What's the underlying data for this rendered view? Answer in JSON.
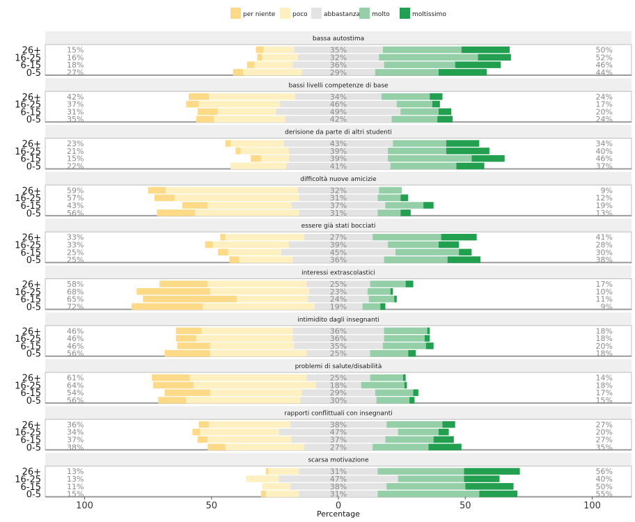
{
  "chart_data": {
    "type": "bar",
    "subtype": "diverging-stacked-likert",
    "xlabel": "Percentage",
    "x_ticks": [
      -100,
      -50,
      0,
      50,
      100
    ],
    "x_tick_labels": [
      "100",
      "50",
      "0",
      "50",
      "100"
    ],
    "xlim": [
      -100,
      100
    ],
    "legend": {
      "placement": "top",
      "items": [
        {
          "name": "per niente",
          "color": "#FDDA87"
        },
        {
          "name": "poco",
          "color": "#FFF0C1"
        },
        {
          "name": "abbastanza",
          "color": "#E3E3E3"
        },
        {
          "name": "molto",
          "color": "#94CFA8"
        },
        {
          "name": "moltissimo",
          "color": "#22A050"
        }
      ]
    },
    "groups": [
      "26+",
      "16-25",
      "6-15",
      "0-5"
    ],
    "panels": [
      {
        "title": "bassa autostima",
        "rows": [
          {
            "group": "26+",
            "left": "15%",
            "mid": "35%",
            "right": "50%",
            "values": [
              3,
              12,
              35,
              31,
              19
            ]
          },
          {
            "group": "16-25",
            "left": "16%",
            "mid": "32%",
            "right": "52%",
            "values": [
              2,
              14,
              32,
              39,
              13
            ]
          },
          {
            "group": "6-15",
            "left": "18%",
            "mid": "36%",
            "right": "46%",
            "values": [
              3,
              15,
              36,
              28,
              18
            ]
          },
          {
            "group": "0-5",
            "left": "27%",
            "mid": "29%",
            "right": "44%",
            "values": [
              4,
              23,
              29,
              25,
              19
            ]
          }
        ]
      },
      {
        "title": "bassi livelli competenze di base",
        "rows": [
          {
            "group": "26+",
            "left": "42%",
            "mid": "34%",
            "right": "24%",
            "values": [
              8,
              34,
              34,
              19,
              5
            ]
          },
          {
            "group": "16-25",
            "left": "37%",
            "mid": "46%",
            "right": "17%",
            "values": [
              5,
              32,
              46,
              14,
              3
            ]
          },
          {
            "group": "6-15",
            "left": "31%",
            "mid": "49%",
            "right": "20%",
            "values": [
              8,
              23,
              49,
              15,
              5
            ]
          },
          {
            "group": "0-5",
            "left": "35%",
            "mid": "42%",
            "right": "24%",
            "values": [
              7,
              28,
              42,
              18,
              6
            ]
          }
        ]
      },
      {
        "title": "derisione da parte di altri studenti",
        "rows": [
          {
            "group": "26+",
            "left": "23%",
            "mid": "43%",
            "right": "34%",
            "values": [
              2,
              21,
              43,
              21,
              13
            ]
          },
          {
            "group": "16-25",
            "left": "21%",
            "mid": "39%",
            "right": "40%",
            "values": [
              2,
              19,
              39,
              23,
              17
            ]
          },
          {
            "group": "6-15",
            "left": "15%",
            "mid": "39%",
            "right": "46%",
            "values": [
              4,
              11,
              39,
              33,
              13
            ]
          },
          {
            "group": "0-5",
            "left": "22%",
            "mid": "41%",
            "right": "37%",
            "values": [
              0,
              22,
              41,
              26,
              11
            ]
          }
        ]
      },
      {
        "title": "difficoltà nuove amicizie",
        "rows": [
          {
            "group": "26+",
            "left": "59%",
            "mid": "32%",
            "right": "9%",
            "values": [
              7,
              52,
              32,
              9,
              0
            ]
          },
          {
            "group": "16-25",
            "left": "57%",
            "mid": "31%",
            "right": "12%",
            "values": [
              8,
              49,
              31,
              9,
              3
            ]
          },
          {
            "group": "6-15",
            "left": "43%",
            "mid": "37%",
            "right": "19%",
            "values": [
              10,
              33,
              37,
              15,
              4
            ]
          },
          {
            "group": "0-5",
            "left": "56%",
            "mid": "31%",
            "right": "13%",
            "values": [
              15,
              41,
              31,
              9,
              4
            ]
          }
        ]
      },
      {
        "title": "essere già stati bocciati",
        "rows": [
          {
            "group": "26+",
            "left": "33%",
            "mid": "27%",
            "right": "41%",
            "values": [
              2,
              31,
              27,
              27,
              14
            ]
          },
          {
            "group": "16-25",
            "left": "33%",
            "mid": "39%",
            "right": "28%",
            "values": [
              3,
              30,
              39,
              20,
              8
            ]
          },
          {
            "group": "6-15",
            "left": "25%",
            "mid": "45%",
            "right": "30%",
            "values": [
              4,
              21,
              45,
              25,
              5
            ]
          },
          {
            "group": "0-5",
            "left": "25%",
            "mid": "36%",
            "right": "38%",
            "values": [
              4,
              21,
              36,
              25,
              13
            ]
          }
        ]
      },
      {
        "title": "interessi extrascolastici",
        "rows": [
          {
            "group": "26+",
            "left": "58%",
            "mid": "25%",
            "right": "17%",
            "values": [
              19,
              39,
              25,
              14,
              3
            ]
          },
          {
            "group": "16-25",
            "left": "68%",
            "mid": "23%",
            "right": "10%",
            "values": [
              29,
              39,
              23,
              9,
              1
            ]
          },
          {
            "group": "6-15",
            "left": "65%",
            "mid": "24%",
            "right": "11%",
            "values": [
              37,
              28,
              24,
              10,
              1
            ]
          },
          {
            "group": "0-5",
            "left": "72%",
            "mid": "19%",
            "right": "9%",
            "values": [
              28,
              44,
              19,
              7,
              2
            ]
          }
        ]
      },
      {
        "title": "intimidito dagli insegnanti",
        "rows": [
          {
            "group": "26+",
            "left": "46%",
            "mid": "36%",
            "right": "18%",
            "values": [
              10,
              36,
              36,
              17,
              1
            ]
          },
          {
            "group": "16-25",
            "left": "46%",
            "mid": "36%",
            "right": "18%",
            "values": [
              8,
              38,
              36,
              16,
              2
            ]
          },
          {
            "group": "6-15",
            "left": "46%",
            "mid": "35%",
            "right": "20%",
            "values": [
              13,
              33,
              35,
              17,
              3
            ]
          },
          {
            "group": "0-5",
            "left": "56%",
            "mid": "25%",
            "right": "18%",
            "values": [
              18,
              38,
              25,
              15,
              3
            ]
          }
        ]
      },
      {
        "title": "problemi di salute/disabilità",
        "rows": [
          {
            "group": "26+",
            "left": "61%",
            "mid": "25%",
            "right": "14%",
            "values": [
              15,
              46,
              25,
              13,
              1
            ]
          },
          {
            "group": "16-25",
            "left": "64%",
            "mid": "18%",
            "right": "18%",
            "values": [
              16,
              48,
              18,
              17,
              1
            ]
          },
          {
            "group": "6-15",
            "left": "54%",
            "mid": "29%",
            "right": "17%",
            "values": [
              18,
              36,
              29,
              15,
              2
            ]
          },
          {
            "group": "0-5",
            "left": "56%",
            "mid": "30%",
            "right": "15%",
            "values": [
              11,
              45,
              30,
              13,
              2
            ]
          }
        ]
      },
      {
        "title": "rapporti conflittuali con insegnanti",
        "rows": [
          {
            "group": "26+",
            "left": "36%",
            "mid": "38%",
            "right": "27%",
            "values": [
              4,
              32,
              38,
              22,
              5
            ]
          },
          {
            "group": "16-25",
            "left": "34%",
            "mid": "47%",
            "right": "20%",
            "values": [
              3,
              31,
              47,
              16,
              4
            ]
          },
          {
            "group": "6-15",
            "left": "37%",
            "mid": "37%",
            "right": "27%",
            "values": [
              4,
              33,
              37,
              19,
              8
            ]
          },
          {
            "group": "0-5",
            "left": "38%",
            "mid": "27%",
            "right": "35%",
            "values": [
              7,
              31,
              27,
              22,
              13
            ]
          }
        ]
      },
      {
        "title": "scarsa motivazione",
        "rows": [
          {
            "group": "26+",
            "left": "13%",
            "mid": "31%",
            "right": "56%",
            "values": [
              1,
              12,
              31,
              34,
              22
            ]
          },
          {
            "group": "16-25",
            "left": "13%",
            "mid": "47%",
            "right": "40%",
            "values": [
              0,
              13,
              47,
              26,
              14
            ]
          },
          {
            "group": "6-15",
            "left": "11%",
            "mid": "38%",
            "right": "50%",
            "values": [
              0,
              11,
              38,
              31,
              19
            ]
          },
          {
            "group": "0-5",
            "left": "15%",
            "mid": "31%",
            "right": "55%",
            "values": [
              2,
              13,
              31,
              40,
              15
            ]
          }
        ]
      }
    ]
  }
}
